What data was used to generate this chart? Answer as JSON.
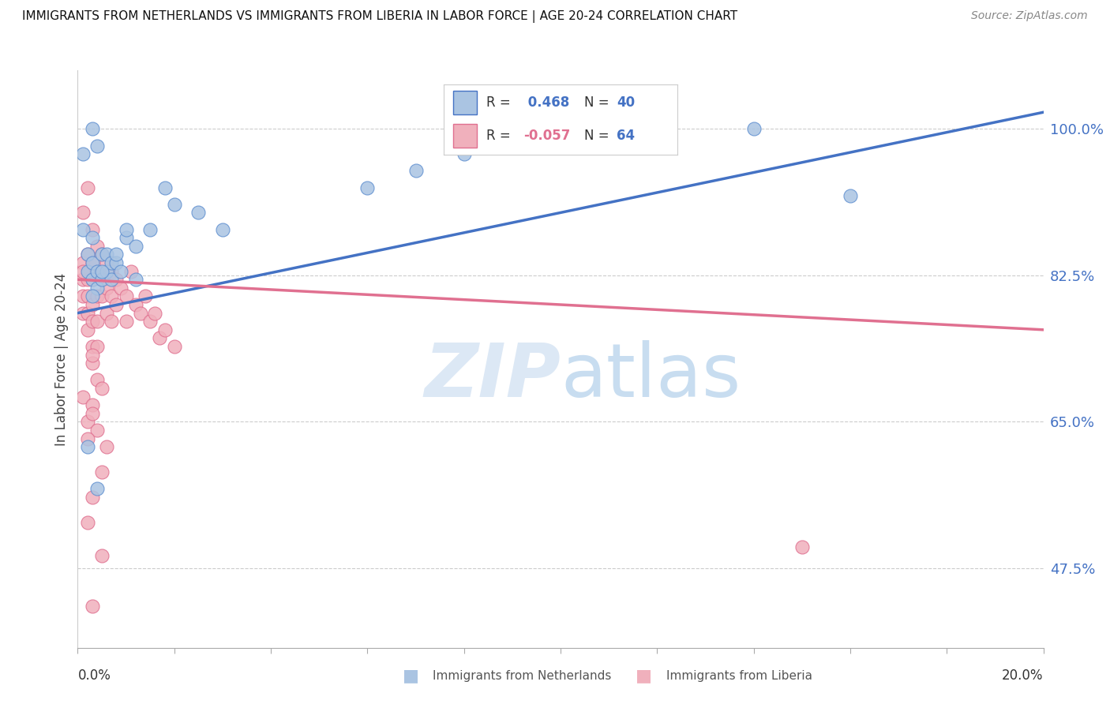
{
  "title": "IMMIGRANTS FROM NETHERLANDS VS IMMIGRANTS FROM LIBERIA IN LABOR FORCE | AGE 20-24 CORRELATION CHART",
  "source": "Source: ZipAtlas.com",
  "ylabel": "In Labor Force | Age 20-24",
  "yticks": [
    0.475,
    0.65,
    0.825,
    1.0
  ],
  "ytick_labels": [
    "47.5%",
    "65.0%",
    "82.5%",
    "100.0%"
  ],
  "xmin": 0.0,
  "xmax": 0.2,
  "ymin": 0.38,
  "ymax": 1.07,
  "r_netherlands": 0.468,
  "n_netherlands": 40,
  "r_liberia": -0.057,
  "n_liberia": 64,
  "netherlands_color": "#aac4e2",
  "liberia_color": "#f0b0bc",
  "netherlands_edge_color": "#6090d0",
  "liberia_edge_color": "#e07090",
  "netherlands_line_color": "#4472c4",
  "liberia_line_color": "#e07090",
  "watermark_color": "#dce8f5",
  "netherlands_scatter_x": [
    0.001,
    0.003,
    0.004,
    0.001,
    0.002,
    0.003,
    0.002,
    0.003,
    0.004,
    0.003,
    0.004,
    0.005,
    0.005,
    0.006,
    0.006,
    0.007,
    0.007,
    0.008,
    0.009,
    0.01,
    0.01,
    0.012,
    0.015,
    0.018,
    0.02,
    0.025,
    0.03,
    0.002,
    0.004,
    0.06,
    0.07,
    0.08,
    0.1,
    0.12,
    0.14,
    0.16,
    0.003,
    0.005,
    0.008,
    0.012
  ],
  "netherlands_scatter_y": [
    0.97,
    1.0,
    0.98,
    0.88,
    0.85,
    0.87,
    0.83,
    0.82,
    0.81,
    0.84,
    0.83,
    0.85,
    0.82,
    0.83,
    0.85,
    0.82,
    0.84,
    0.84,
    0.83,
    0.87,
    0.88,
    0.86,
    0.88,
    0.93,
    0.91,
    0.9,
    0.88,
    0.62,
    0.57,
    0.93,
    0.95,
    0.97,
    0.98,
    0.99,
    1.0,
    0.92,
    0.8,
    0.83,
    0.85,
    0.82
  ],
  "liberia_scatter_x": [
    0.001,
    0.001,
    0.001,
    0.001,
    0.001,
    0.002,
    0.002,
    0.002,
    0.002,
    0.002,
    0.002,
    0.003,
    0.003,
    0.003,
    0.003,
    0.003,
    0.004,
    0.004,
    0.004,
    0.004,
    0.004,
    0.005,
    0.005,
    0.005,
    0.006,
    0.006,
    0.006,
    0.007,
    0.007,
    0.007,
    0.008,
    0.008,
    0.009,
    0.01,
    0.01,
    0.011,
    0.012,
    0.013,
    0.014,
    0.015,
    0.016,
    0.017,
    0.018,
    0.02,
    0.001,
    0.002,
    0.003,
    0.004,
    0.006,
    0.003,
    0.004,
    0.005,
    0.002,
    0.003,
    0.003,
    0.005,
    0.002,
    0.003,
    0.005,
    0.002,
    0.003,
    0.003,
    0.15,
    0.001
  ],
  "liberia_scatter_y": [
    0.84,
    0.82,
    0.8,
    0.78,
    0.9,
    0.85,
    0.83,
    0.8,
    0.78,
    0.76,
    0.82,
    0.84,
    0.82,
    0.79,
    0.77,
    0.74,
    0.86,
    0.83,
    0.8,
    0.77,
    0.74,
    0.85,
    0.82,
    0.8,
    0.84,
    0.81,
    0.78,
    0.83,
    0.8,
    0.77,
    0.82,
    0.79,
    0.81,
    0.8,
    0.77,
    0.83,
    0.79,
    0.78,
    0.8,
    0.77,
    0.78,
    0.75,
    0.76,
    0.74,
    0.68,
    0.65,
    0.67,
    0.64,
    0.62,
    0.72,
    0.7,
    0.69,
    0.93,
    0.88,
    0.43,
    0.49,
    0.53,
    0.56,
    0.59,
    0.63,
    0.66,
    0.73,
    0.5,
    0.83
  ],
  "nl_trend_x": [
    0.0,
    0.2
  ],
  "nl_trend_y": [
    0.78,
    1.02
  ],
  "lib_trend_x": [
    0.0,
    0.2
  ],
  "lib_trend_y": [
    0.82,
    0.76
  ]
}
